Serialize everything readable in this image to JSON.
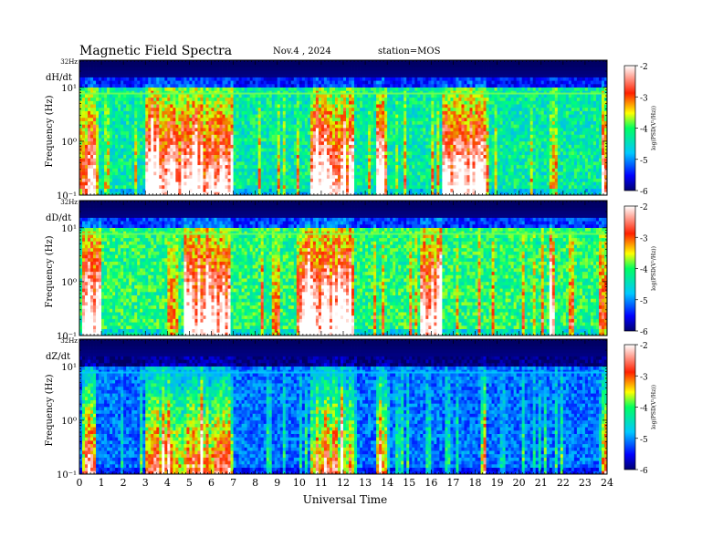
{
  "header": {
    "title": "Magnetic  Field  Spectra",
    "date": "Nov.4  , 2024",
    "station": "station=MOS"
  },
  "chart_data": {
    "type": "heatmap",
    "title": "Magnetic  Field  Spectra",
    "xlabel": "Universal Time",
    "x_ticks": [
      "0",
      "1",
      "2",
      "3",
      "4",
      "5",
      "6",
      "7",
      "8",
      "9",
      "10",
      "11",
      "12",
      "13",
      "14",
      "15",
      "16",
      "17",
      "18",
      "19",
      "20",
      "21",
      "22",
      "23",
      "24"
    ],
    "xlim": [
      0,
      24
    ],
    "ylim_hz": [
      0.1,
      32
    ],
    "y_scale": "log",
    "colorbar": {
      "label": "log(PSD(V²/Hz))",
      "ticks": [
        "-2",
        "-3",
        "-4",
        "-5",
        "-6"
      ],
      "range": [
        -6,
        -2
      ],
      "colors": [
        "#000070",
        "#0000ff",
        "#00c8ff",
        "#00ff60",
        "#ffff00",
        "#ff2000",
        "#ffffff"
      ]
    },
    "panels": [
      {
        "label": "dH/dt",
        "ylabel": "Frequency  (Hz)",
        "top_label": "32Hz",
        "y_tick_labels": [
          "10¹",
          "10⁰",
          "10⁻¹"
        ],
        "background_level": -4.2,
        "intense_intervals_ut": [
          [
            0.1,
            0.8
          ],
          [
            3.0,
            7.0
          ],
          [
            10.5,
            12.5
          ],
          [
            13.5,
            14.0
          ],
          [
            16.5,
            18.5
          ],
          [
            23.7,
            24.0
          ]
        ]
      },
      {
        "label": "dD/dt",
        "ylabel": "Frequency  (Hz)",
        "top_label": "32Hz",
        "y_tick_labels": [
          "10¹",
          "10⁰",
          "10⁻¹"
        ],
        "background_level": -4.0,
        "intense_intervals_ut": [
          [
            0.1,
            1.0
          ],
          [
            4.8,
            6.9
          ],
          [
            10.0,
            12.5
          ],
          [
            15.5,
            16.5
          ],
          [
            21.4,
            21.6
          ]
        ]
      },
      {
        "label": "dZ/dt",
        "ylabel": "Frequency  (Hz)",
        "top_label": "32Hz",
        "y_tick_labels": [
          "10¹",
          "10⁰",
          "10⁻¹"
        ],
        "background_level": -5.0,
        "intense_intervals_ut": [
          [
            0.1,
            0.8
          ],
          [
            3.0,
            7.0
          ],
          [
            10.5,
            12.5
          ],
          [
            13.5,
            14.0
          ],
          [
            18.3,
            18.5
          ],
          [
            23.7,
            24.0
          ]
        ]
      }
    ]
  }
}
